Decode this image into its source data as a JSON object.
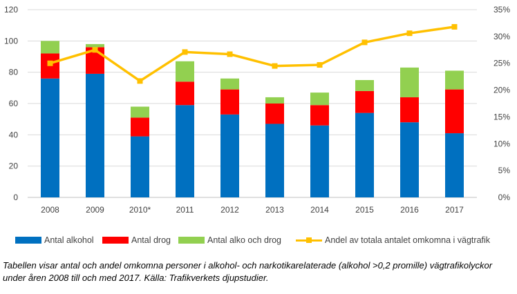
{
  "chart_data": {
    "type": "bar",
    "stacked": true,
    "categories": [
      "2008",
      "2009",
      "2010*",
      "2011",
      "2012",
      "2013",
      "2014",
      "2015",
      "2016",
      "2017"
    ],
    "series": [
      {
        "name": "Antal alkohol",
        "kind": "bar",
        "color": "#0070C0",
        "values": [
          76,
          79,
          39,
          59,
          53,
          47,
          46,
          54,
          48,
          41
        ]
      },
      {
        "name": "Antal drog",
        "kind": "bar",
        "color": "#FF0000",
        "values": [
          16,
          17,
          12,
          15,
          16,
          13,
          13,
          14,
          16,
          28
        ]
      },
      {
        "name": "Antal alko och drog",
        "kind": "bar",
        "color": "#92D050",
        "values": [
          8,
          2,
          7,
          13,
          7,
          4,
          8,
          7,
          19,
          12
        ]
      },
      {
        "name": "Andel av totala antalet omkomna i vägtrafik",
        "kind": "line",
        "axis": "right",
        "color": "#FFC000",
        "values": [
          25.0,
          27.5,
          21.7,
          27.1,
          26.7,
          24.5,
          24.7,
          28.9,
          30.6,
          31.8
        ]
      }
    ],
    "y_left": {
      "min": 0,
      "max": 120,
      "step": 20,
      "ticks": [
        "0",
        "20",
        "40",
        "60",
        "80",
        "100",
        "120"
      ]
    },
    "y_right": {
      "min": 0,
      "max": 35,
      "step": 5,
      "ticks": [
        "0%",
        "5%",
        "10%",
        "15%",
        "20%",
        "25%",
        "30%",
        "35%"
      ]
    },
    "grid": true,
    "legend": "bottom"
  },
  "caption": "Tabellen visar antal och andel omkomna personer i alkohol- och narkotikarelaterade (alkohol >0,2 promille) vägtrafikolyckor under åren 2008 till och med 2017. Källa: Trafikverkets djupstudier."
}
